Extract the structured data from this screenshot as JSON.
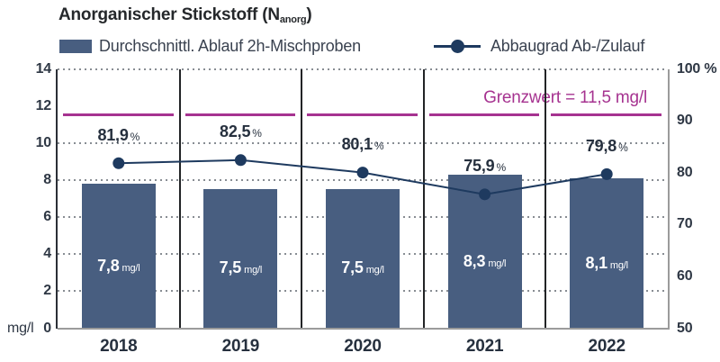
{
  "title": {
    "prefix": "Anorganischer Stickstoff (N",
    "subscript": "anorg",
    "suffix": ")"
  },
  "legend": {
    "bar_label": "Durchschnittl. Ablauf 2h-Mischproben",
    "line_label": "Abbaugrad Ab-/Zulauf"
  },
  "colors": {
    "bar": "#485e80",
    "line": "#1e3a5f",
    "limit": "#a63390",
    "text_dark": "#26303e",
    "axis_gray": "#9b9b9b",
    "grid_dots": "#888d93",
    "separator": "#222426",
    "bar_value_text": "#ffffff"
  },
  "chart_data": {
    "type": "bar",
    "subtype": "bar-with-line-overlay",
    "title": "Anorganischer Stickstoff (N anorg)",
    "categories": [
      "2018",
      "2019",
      "2020",
      "2021",
      "2022"
    ],
    "series": [
      {
        "name": "Durchschnittl. Ablauf 2h-Mischproben",
        "type": "bar",
        "axis": "left",
        "unit": "mg/l",
        "values": [
          7.8,
          7.5,
          7.5,
          8.3,
          8.1
        ],
        "labels": [
          "7,8",
          "7,5",
          "7,5",
          "8,3",
          "8,1"
        ]
      },
      {
        "name": "Abbaugrad Ab-/Zulauf",
        "type": "line",
        "axis": "right",
        "unit": "%",
        "values": [
          81.9,
          82.5,
          80.1,
          75.9,
          79.8
        ],
        "labels": [
          "81,9",
          "82,5",
          "80,1",
          "75,9",
          "79,8"
        ]
      }
    ],
    "left_axis": {
      "unit_label": "mg/l",
      "min": 0,
      "max": 14,
      "ticks": [
        0,
        2,
        4,
        6,
        8,
        10,
        12,
        14
      ]
    },
    "right_axis": {
      "min": 50,
      "max": 100,
      "ticks": [
        {
          "value": 50,
          "label": "50"
        },
        {
          "value": 60,
          "label": "60"
        },
        {
          "value": 70,
          "label": "70"
        },
        {
          "value": 80,
          "label": "80"
        },
        {
          "value": 90,
          "label": "90"
        },
        {
          "value": 100,
          "label": "100 %"
        }
      ]
    },
    "gridlines_at_left_values": [
      2,
      4,
      6,
      8,
      10,
      14
    ],
    "limit_line": {
      "value": 11.5,
      "label": "Grenzwert = 11,5 mg/l"
    },
    "legend_position": "top",
    "grid": true
  }
}
